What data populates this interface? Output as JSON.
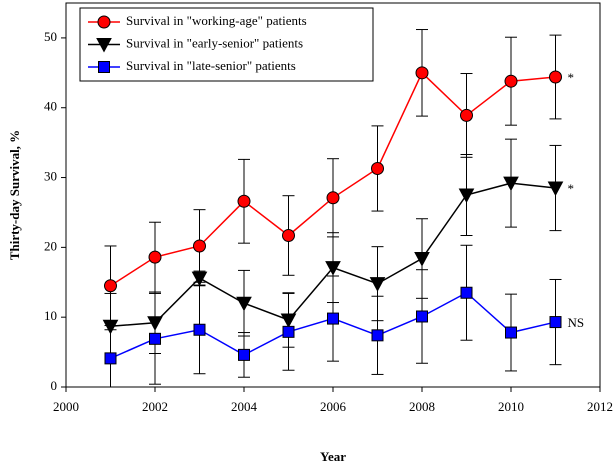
{
  "chart_data": {
    "type": "line",
    "x_label": "Year",
    "y_label": "Thirty-day Survival, %",
    "xlim": [
      2000,
      2012
    ],
    "xticks": [
      2000,
      2002,
      2004,
      2006,
      2008,
      2010,
      2012
    ],
    "ylim": [
      0,
      55
    ],
    "yticks": [
      0,
      10,
      20,
      30,
      40,
      50
    ],
    "legend": "upper left",
    "x": [
      2001,
      2002,
      2003,
      2004,
      2005,
      2006,
      2007,
      2008,
      2009,
      2010,
      2011
    ],
    "series": [
      {
        "name": "Survival in \"working-age\" patients",
        "color": "#ff0000",
        "marker": "circle",
        "annotation": "*",
        "values": [
          14.5,
          18.6,
          20.2,
          26.6,
          21.7,
          27.1,
          31.3,
          45.0,
          38.9,
          43.8,
          44.4
        ],
        "errors": [
          5.7,
          5.0,
          5.2,
          6.0,
          5.7,
          5.6,
          6.1,
          6.2,
          6.0,
          6.3,
          6.0
        ]
      },
      {
        "name": "Survival in \"early-senior\" patients",
        "color": "#000000",
        "marker": "triangle-down",
        "annotation": "*",
        "values": [
          8.7,
          9.2,
          15.6,
          12.0,
          9.6,
          17.1,
          14.8,
          18.4,
          27.5,
          29.2,
          28.5
        ],
        "errors": [
          4.7,
          4.4,
          1.0,
          4.7,
          3.9,
          5.0,
          5.3,
          5.7,
          5.8,
          6.3,
          6.1
        ]
      },
      {
        "name": "Survival in \"late-senior\" patients",
        "color": "#0000ff",
        "marker": "square",
        "annotation": "NS",
        "values": [
          4.1,
          6.9,
          8.2,
          4.6,
          7.9,
          9.8,
          7.4,
          10.1,
          13.5,
          7.8,
          9.3
        ],
        "errors": [
          4.1,
          6.5,
          6.3,
          3.2,
          5.5,
          6.1,
          5.6,
          6.7,
          6.8,
          5.5,
          6.1
        ]
      }
    ]
  }
}
